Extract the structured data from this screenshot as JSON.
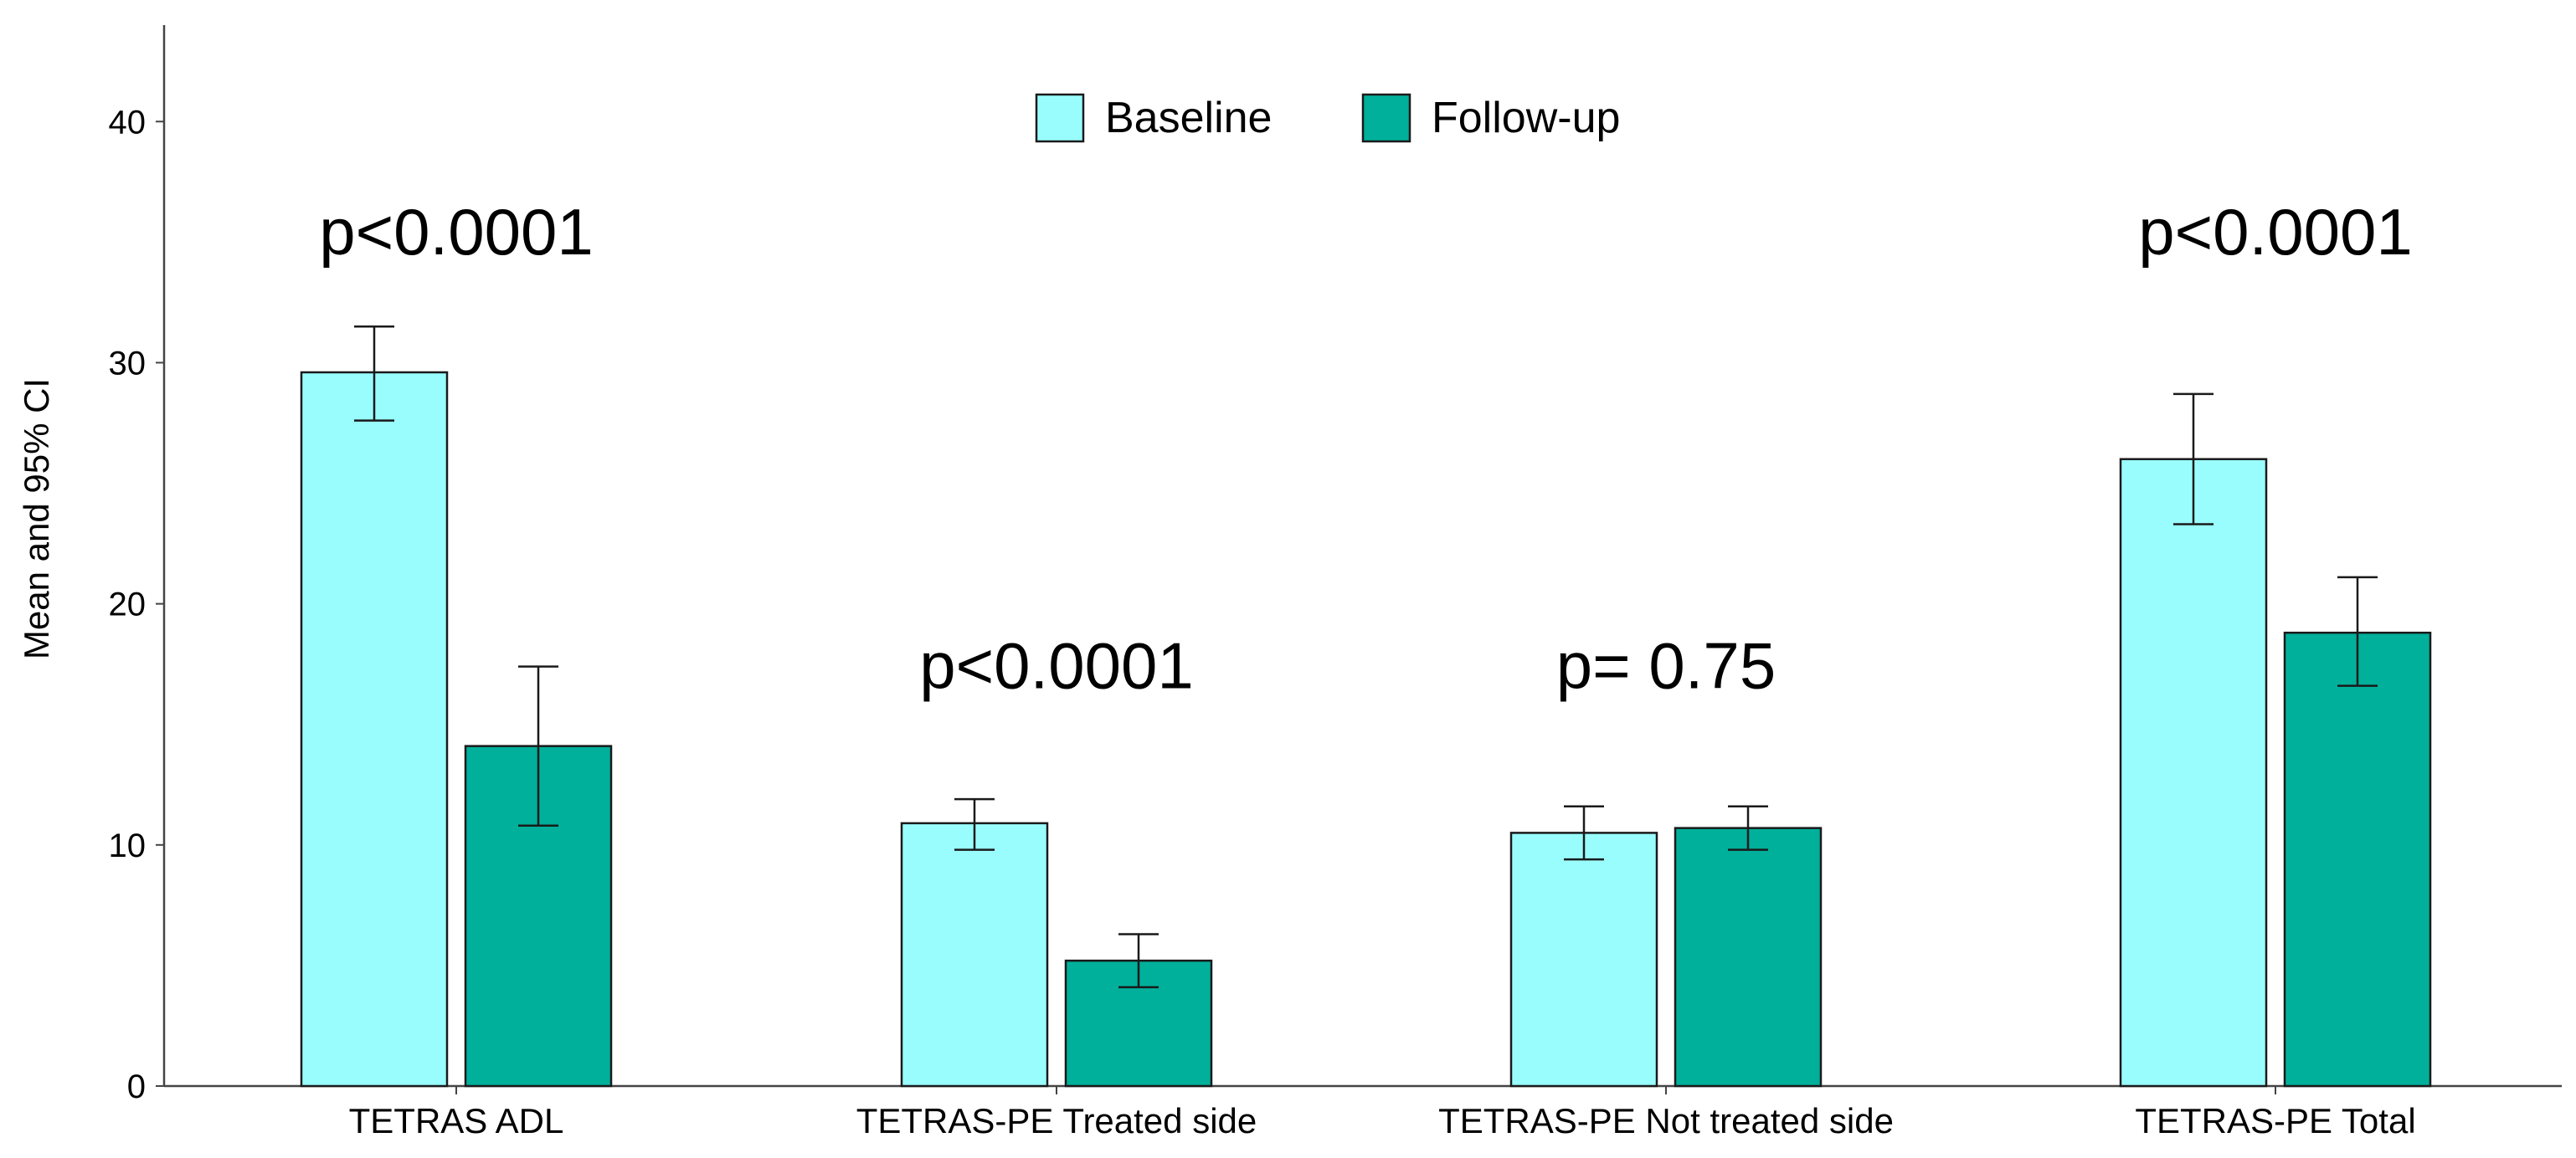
{
  "chart_data": {
    "type": "bar",
    "title": "",
    "xlabel": "",
    "ylabel": "Mean and 95% CI",
    "ylim": [
      0,
      44
    ],
    "yticks": [
      0,
      10,
      20,
      30,
      40
    ],
    "grid": false,
    "legend_position": "top-center",
    "categories": [
      "TETRAS ADL",
      "TETRAS-PE Treated side",
      "TETRAS-PE Not treated side",
      "TETRAS-PE Total"
    ],
    "series": [
      {
        "name": "Baseline",
        "color": "#99fdfd",
        "values": [
          29.6,
          10.9,
          10.5,
          26.0
        ],
        "ci_low": [
          27.6,
          9.8,
          9.4,
          23.3
        ],
        "ci_high": [
          31.5,
          11.9,
          11.6,
          28.7
        ]
      },
      {
        "name": "Follow-up",
        "color": "#00b09b",
        "values": [
          14.1,
          5.2,
          10.7,
          18.8
        ],
        "ci_low": [
          10.8,
          4.1,
          9.8,
          16.6
        ],
        "ci_high": [
          17.4,
          6.3,
          11.6,
          21.1
        ]
      }
    ],
    "annotations": [
      {
        "category": "TETRAS ADL",
        "text": "p<0.0001",
        "y": 34.5
      },
      {
        "category": "TETRAS-PE Treated side",
        "text": "p<0.0001",
        "y": 16.5
      },
      {
        "category": "TETRAS-PE Not treated side",
        "text": "p= 0.75",
        "y": 16.5
      },
      {
        "category": "TETRAS-PE Total",
        "text": "p<0.0001",
        "y": 34.5
      }
    ]
  }
}
